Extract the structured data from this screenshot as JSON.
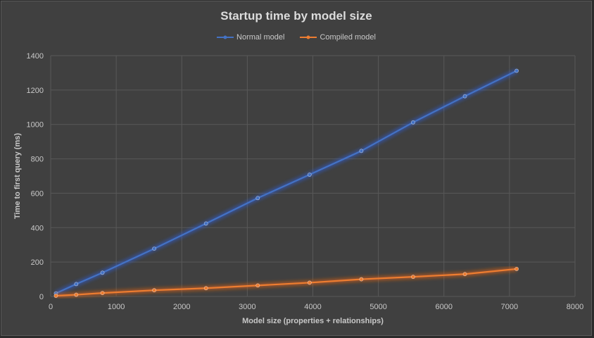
{
  "chart_data": {
    "type": "line",
    "title": "Startup time by model size",
    "xlabel": "Model size (properties  + relationships)",
    "ylabel": "Time to first query  (ms)",
    "xlim": [
      0,
      8000
    ],
    "ylim": [
      0,
      1400
    ],
    "x_ticks": [
      0,
      1000,
      2000,
      3000,
      4000,
      5000,
      6000,
      7000,
      8000
    ],
    "y_ticks": [
      0,
      200,
      400,
      600,
      800,
      1000,
      1200,
      1400
    ],
    "grid": true,
    "legend_position": "top",
    "x": [
      80,
      390,
      790,
      1580,
      2370,
      3160,
      3950,
      4740,
      5530,
      6320,
      7110
    ],
    "series": [
      {
        "name": "Normal model",
        "color": "#4472c4",
        "glow": "#2f5bd0",
        "values": [
          18,
          72,
          138,
          278,
          424,
          572,
          708,
          846,
          1012,
          1164,
          1312
        ]
      },
      {
        "name": "Compiled model",
        "color": "#ed7d31",
        "glow": "#e06010",
        "values": [
          4,
          10,
          20,
          36,
          48,
          64,
          80,
          100,
          114,
          130,
          160
        ]
      }
    ]
  }
}
